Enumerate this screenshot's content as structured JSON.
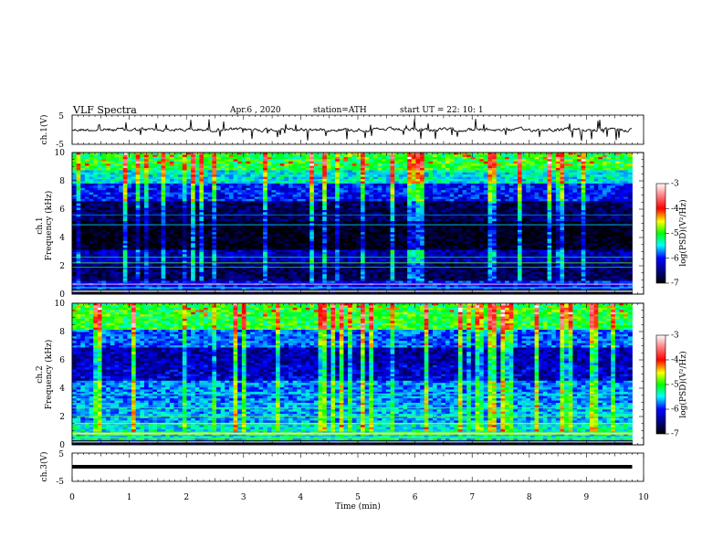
{
  "header": {
    "title": "VLF  Spectra",
    "date": "Apr.6  , 2020",
    "station": "station=ATH",
    "start": "start  UT  =   22: 10: 1"
  },
  "chart_data": [
    {
      "type": "line",
      "name": "ch1-waveform",
      "ylabel": "ch.1(V)",
      "ylim": [
        -5,
        5
      ],
      "yticks": [
        "5",
        "-5"
      ],
      "xlim": [
        0,
        10
      ],
      "trace_color": "#000000"
    },
    {
      "type": "heatmap",
      "name": "ch1-spectrogram",
      "ylabel": "ch.1\nFrequency (kHz)",
      "ylim": [
        0,
        10
      ],
      "yticks": [
        "0",
        "2",
        "4",
        "6",
        "8",
        "10"
      ],
      "xlim": [
        0,
        9.8
      ],
      "colorbar": {
        "label": "log(PSD)(V²/Hz)",
        "range": [
          -7,
          -3
        ],
        "ticks": [
          "-3",
          "-4",
          "-5",
          "-6",
          "-7"
        ]
      }
    },
    {
      "type": "heatmap",
      "name": "ch2-spectrogram",
      "ylabel": "ch.2\nFrequency (kHz)",
      "ylim": [
        0,
        10
      ],
      "yticks": [
        "0",
        "2",
        "4",
        "6",
        "8",
        "10"
      ],
      "xlim": [
        0,
        9.8
      ],
      "colorbar": {
        "label": "log(PSD)(V²/Hz)",
        "range": [
          -7,
          -3
        ],
        "ticks": [
          "-3",
          "-4",
          "-5",
          "-6",
          "-7"
        ]
      }
    },
    {
      "type": "line",
      "name": "ch3-waveform",
      "ylabel": "ch.3(V)",
      "ylim": [
        -5,
        5
      ],
      "yticks": [
        "5",
        "-5"
      ],
      "xlim": [
        0,
        10
      ],
      "trace_color": "#000000"
    }
  ],
  "xaxis": {
    "label": "Time  (min)",
    "range": [
      0,
      10
    ],
    "ticks": [
      "0",
      "1",
      "2",
      "3",
      "4",
      "5",
      "6",
      "7",
      "8",
      "9",
      "10"
    ]
  },
  "labels": {
    "ch1_wave": "ch.1(V)",
    "ch1_freq": "Frequency (kHz)",
    "ch1_name": "ch.1",
    "ch2_freq": "Frequency (kHz)",
    "ch2_name": "ch.2",
    "ch3_wave": "ch.3(V)",
    "cbar1": "log(PSD)(V²/Hz)",
    "cbar2": "log(PSD)(V²/Hz)"
  }
}
